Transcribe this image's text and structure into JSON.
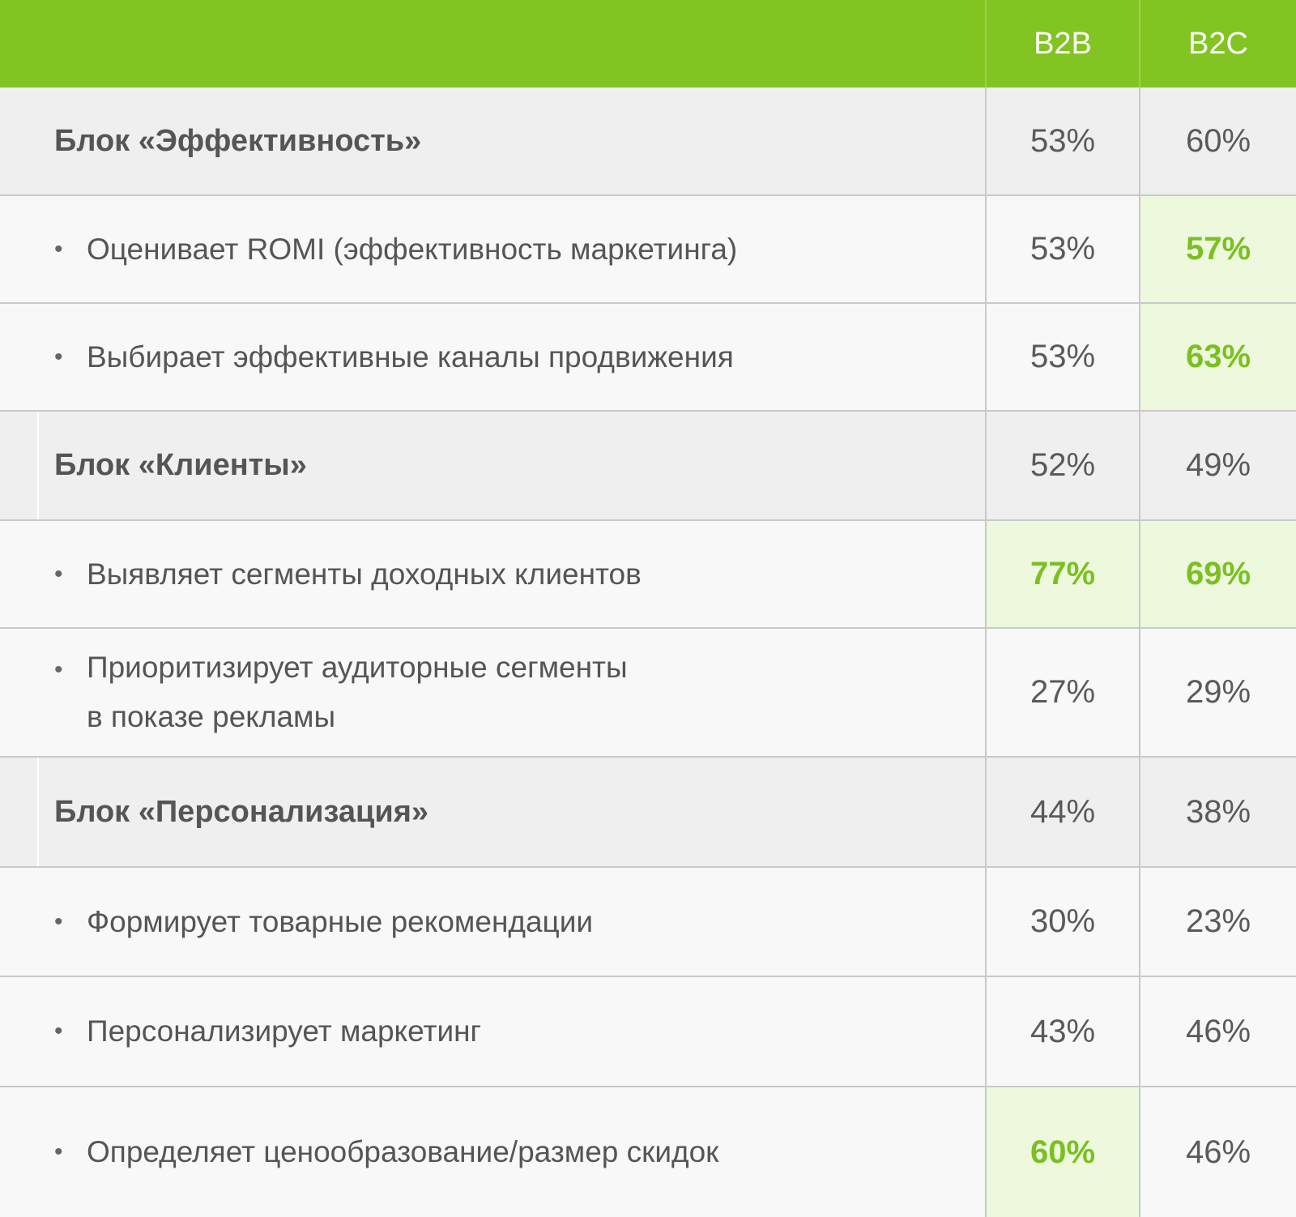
{
  "header": {
    "col_b2b": "B2B",
    "col_b2c": "B2C"
  },
  "rows": [
    {
      "label": "Блок «Эффективность»",
      "b2b": "53%",
      "b2c": "60%"
    },
    {
      "label": "Оценивает ROMI (эффективность маркетинга)",
      "b2b": "53%",
      "b2c": "57%"
    },
    {
      "label": "Выбирает эффективные каналы продвижения",
      "b2b": "53%",
      "b2c": "63%"
    },
    {
      "label": "Блок «Клиенты»",
      "b2b": "52%",
      "b2c": "49%"
    },
    {
      "label": "Выявляет сегменты доходных клиентов",
      "b2b": "77%",
      "b2c": "69%"
    },
    {
      "label_line1": "Приоритизирует аудиторные сегменты",
      "label_line2": "в показе рекламы",
      "b2b": "27%",
      "b2c": "29%"
    },
    {
      "label": "Блок «Персонализация»",
      "b2b": "44%",
      "b2c": "38%"
    },
    {
      "label": "Формирует товарные рекомендации",
      "b2b": "30%",
      "b2c": "23%"
    },
    {
      "label": "Персонализирует маркетинг",
      "b2b": "43%",
      "b2c": "46%"
    },
    {
      "label": "Определяет ценообразование/размер скидок",
      "b2b": "60%",
      "b2c": "46%"
    }
  ],
  "colors": {
    "header_bg": "#82c421",
    "highlight_bg": "#edf8dd",
    "highlight_text": "#7ac021",
    "group_bg": "#f0eff0"
  }
}
